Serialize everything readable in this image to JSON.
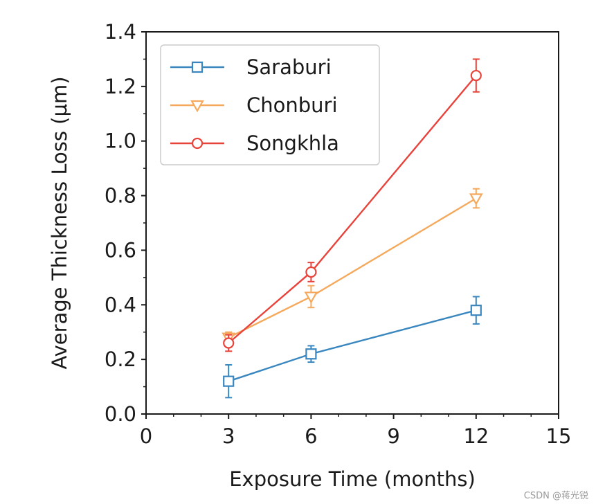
{
  "chart_data": {
    "type": "line",
    "title": "",
    "xlabel": "Exposure Time (months)",
    "ylabel": "Average Thickness Loss (μm)",
    "xlim": [
      0,
      15
    ],
    "ylim": [
      0.0,
      1.4
    ],
    "x_ticks": [
      0,
      3,
      6,
      9,
      12,
      15
    ],
    "y_ticks": [
      0.0,
      0.2,
      0.4,
      0.6,
      0.8,
      1.0,
      1.2,
      1.4
    ],
    "x_tick_labels": [
      "0",
      "3",
      "6",
      "9",
      "12",
      "15"
    ],
    "y_tick_labels": [
      "0.0",
      "0.2",
      "0.4",
      "0.6",
      "0.8",
      "1.0",
      "1.2",
      "1.4"
    ],
    "grid": false,
    "legend_position": "top-left",
    "series": [
      {
        "name": "Saraburi",
        "color": "#3a87c0",
        "marker": "square",
        "x": [
          3,
          6,
          12
        ],
        "y": [
          0.12,
          0.22,
          0.38
        ],
        "error": [
          0.06,
          0.03,
          0.05
        ]
      },
      {
        "name": "Chonburi",
        "color": "#f5a95c",
        "marker": "triangle-down",
        "x": [
          3,
          6,
          12
        ],
        "y": [
          0.28,
          0.43,
          0.79
        ],
        "error": [
          0.02,
          0.04,
          0.035
        ]
      },
      {
        "name": "Songkhla",
        "color": "#e8433b",
        "marker": "circle",
        "x": [
          3,
          6,
          12
        ],
        "y": [
          0.26,
          0.52,
          1.24
        ],
        "error": [
          0.03,
          0.035,
          0.06
        ]
      }
    ]
  },
  "watermark": "CSDN @蒋光锐"
}
